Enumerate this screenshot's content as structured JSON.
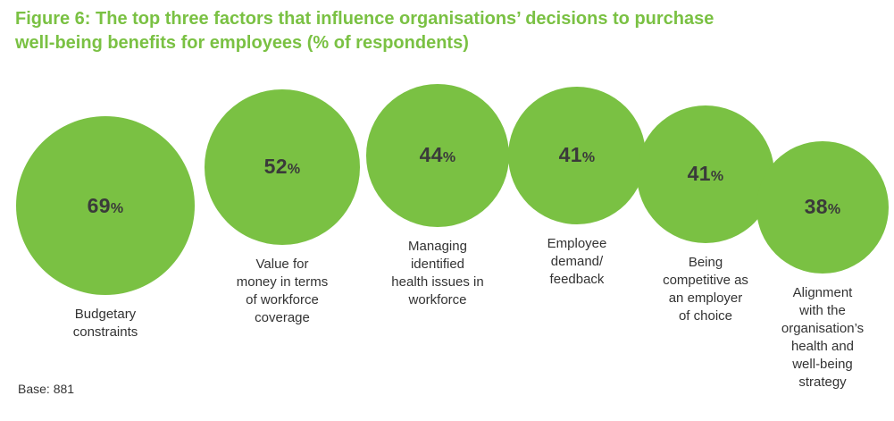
{
  "title": "Figure 6: The top three factors that influence organisations’ decisions to purchase well-being benefits for employees (% of respondents)",
  "base_note": "Base: 881",
  "accent_color": "#7ac143",
  "chart_data": {
    "type": "bubble",
    "title": "Figure 6: The top three factors that influence organisations’ decisions to purchase well-being benefits for employees (% of respondents)",
    "unit": "%",
    "categories": [
      "Budgetary\nconstraints",
      "Value for\nmoney in terms\nof workforce\ncoverage",
      "Managing\nidentified\nhealth issues in\nworkforce",
      "Employee\ndemand/\nfeedback",
      "Being\ncompetitive as\nan employer\nof choice",
      "Alignment\nwith the\norganisation’s\nhealth and\nwell-being\nstrategy"
    ],
    "values": [
      69,
      52,
      44,
      41,
      41,
      38
    ],
    "value_suffix": "%",
    "bubble_color": "#7ac143"
  }
}
